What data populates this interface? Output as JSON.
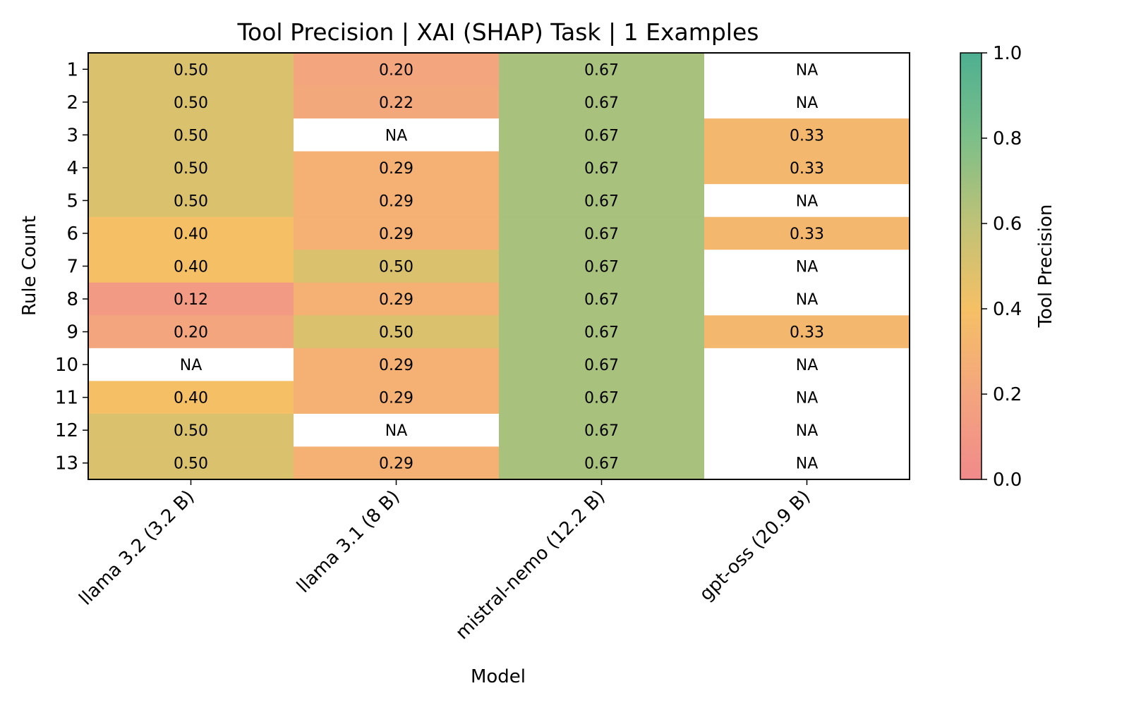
{
  "chart_data": {
    "type": "heatmap",
    "title": "Tool Precision | XAI (SHAP) Task | 1 Examples",
    "xlabel": "Model",
    "ylabel": "Rule Count",
    "x_categories": [
      "llama 3.2 (3.2 B)",
      "llama 3.1 (8 B)",
      "mistral-nemo (12.2 B)",
      "gpt-oss (20.9 B)"
    ],
    "y_categories": [
      "1",
      "2",
      "3",
      "4",
      "5",
      "6",
      "7",
      "8",
      "9",
      "10",
      "11",
      "12",
      "13"
    ],
    "values": [
      [
        0.5,
        0.2,
        0.67,
        null
      ],
      [
        0.5,
        0.22,
        0.67,
        null
      ],
      [
        0.5,
        null,
        0.67,
        0.33
      ],
      [
        0.5,
        0.29,
        0.67,
        0.33
      ],
      [
        0.5,
        0.29,
        0.67,
        null
      ],
      [
        0.4,
        0.29,
        0.67,
        0.33
      ],
      [
        0.4,
        0.5,
        0.67,
        null
      ],
      [
        0.12,
        0.29,
        0.67,
        null
      ],
      [
        0.2,
        0.5,
        0.67,
        0.33
      ],
      [
        null,
        0.29,
        0.67,
        null
      ],
      [
        0.4,
        0.29,
        0.67,
        null
      ],
      [
        0.5,
        null,
        0.67,
        null
      ],
      [
        0.5,
        0.29,
        0.67,
        null
      ]
    ],
    "missing_label": "NA",
    "value_format_decimals": 2,
    "colorbar": {
      "label": "Tool Precision",
      "range": [
        0.0,
        1.0
      ],
      "ticks": [
        0.0,
        0.2,
        0.4,
        0.6,
        0.8,
        1.0
      ],
      "colors": [
        "#f08a8a",
        "#f3a57e",
        "#f5c065",
        "#bfc276",
        "#7cbf88",
        "#4db091"
      ]
    }
  }
}
